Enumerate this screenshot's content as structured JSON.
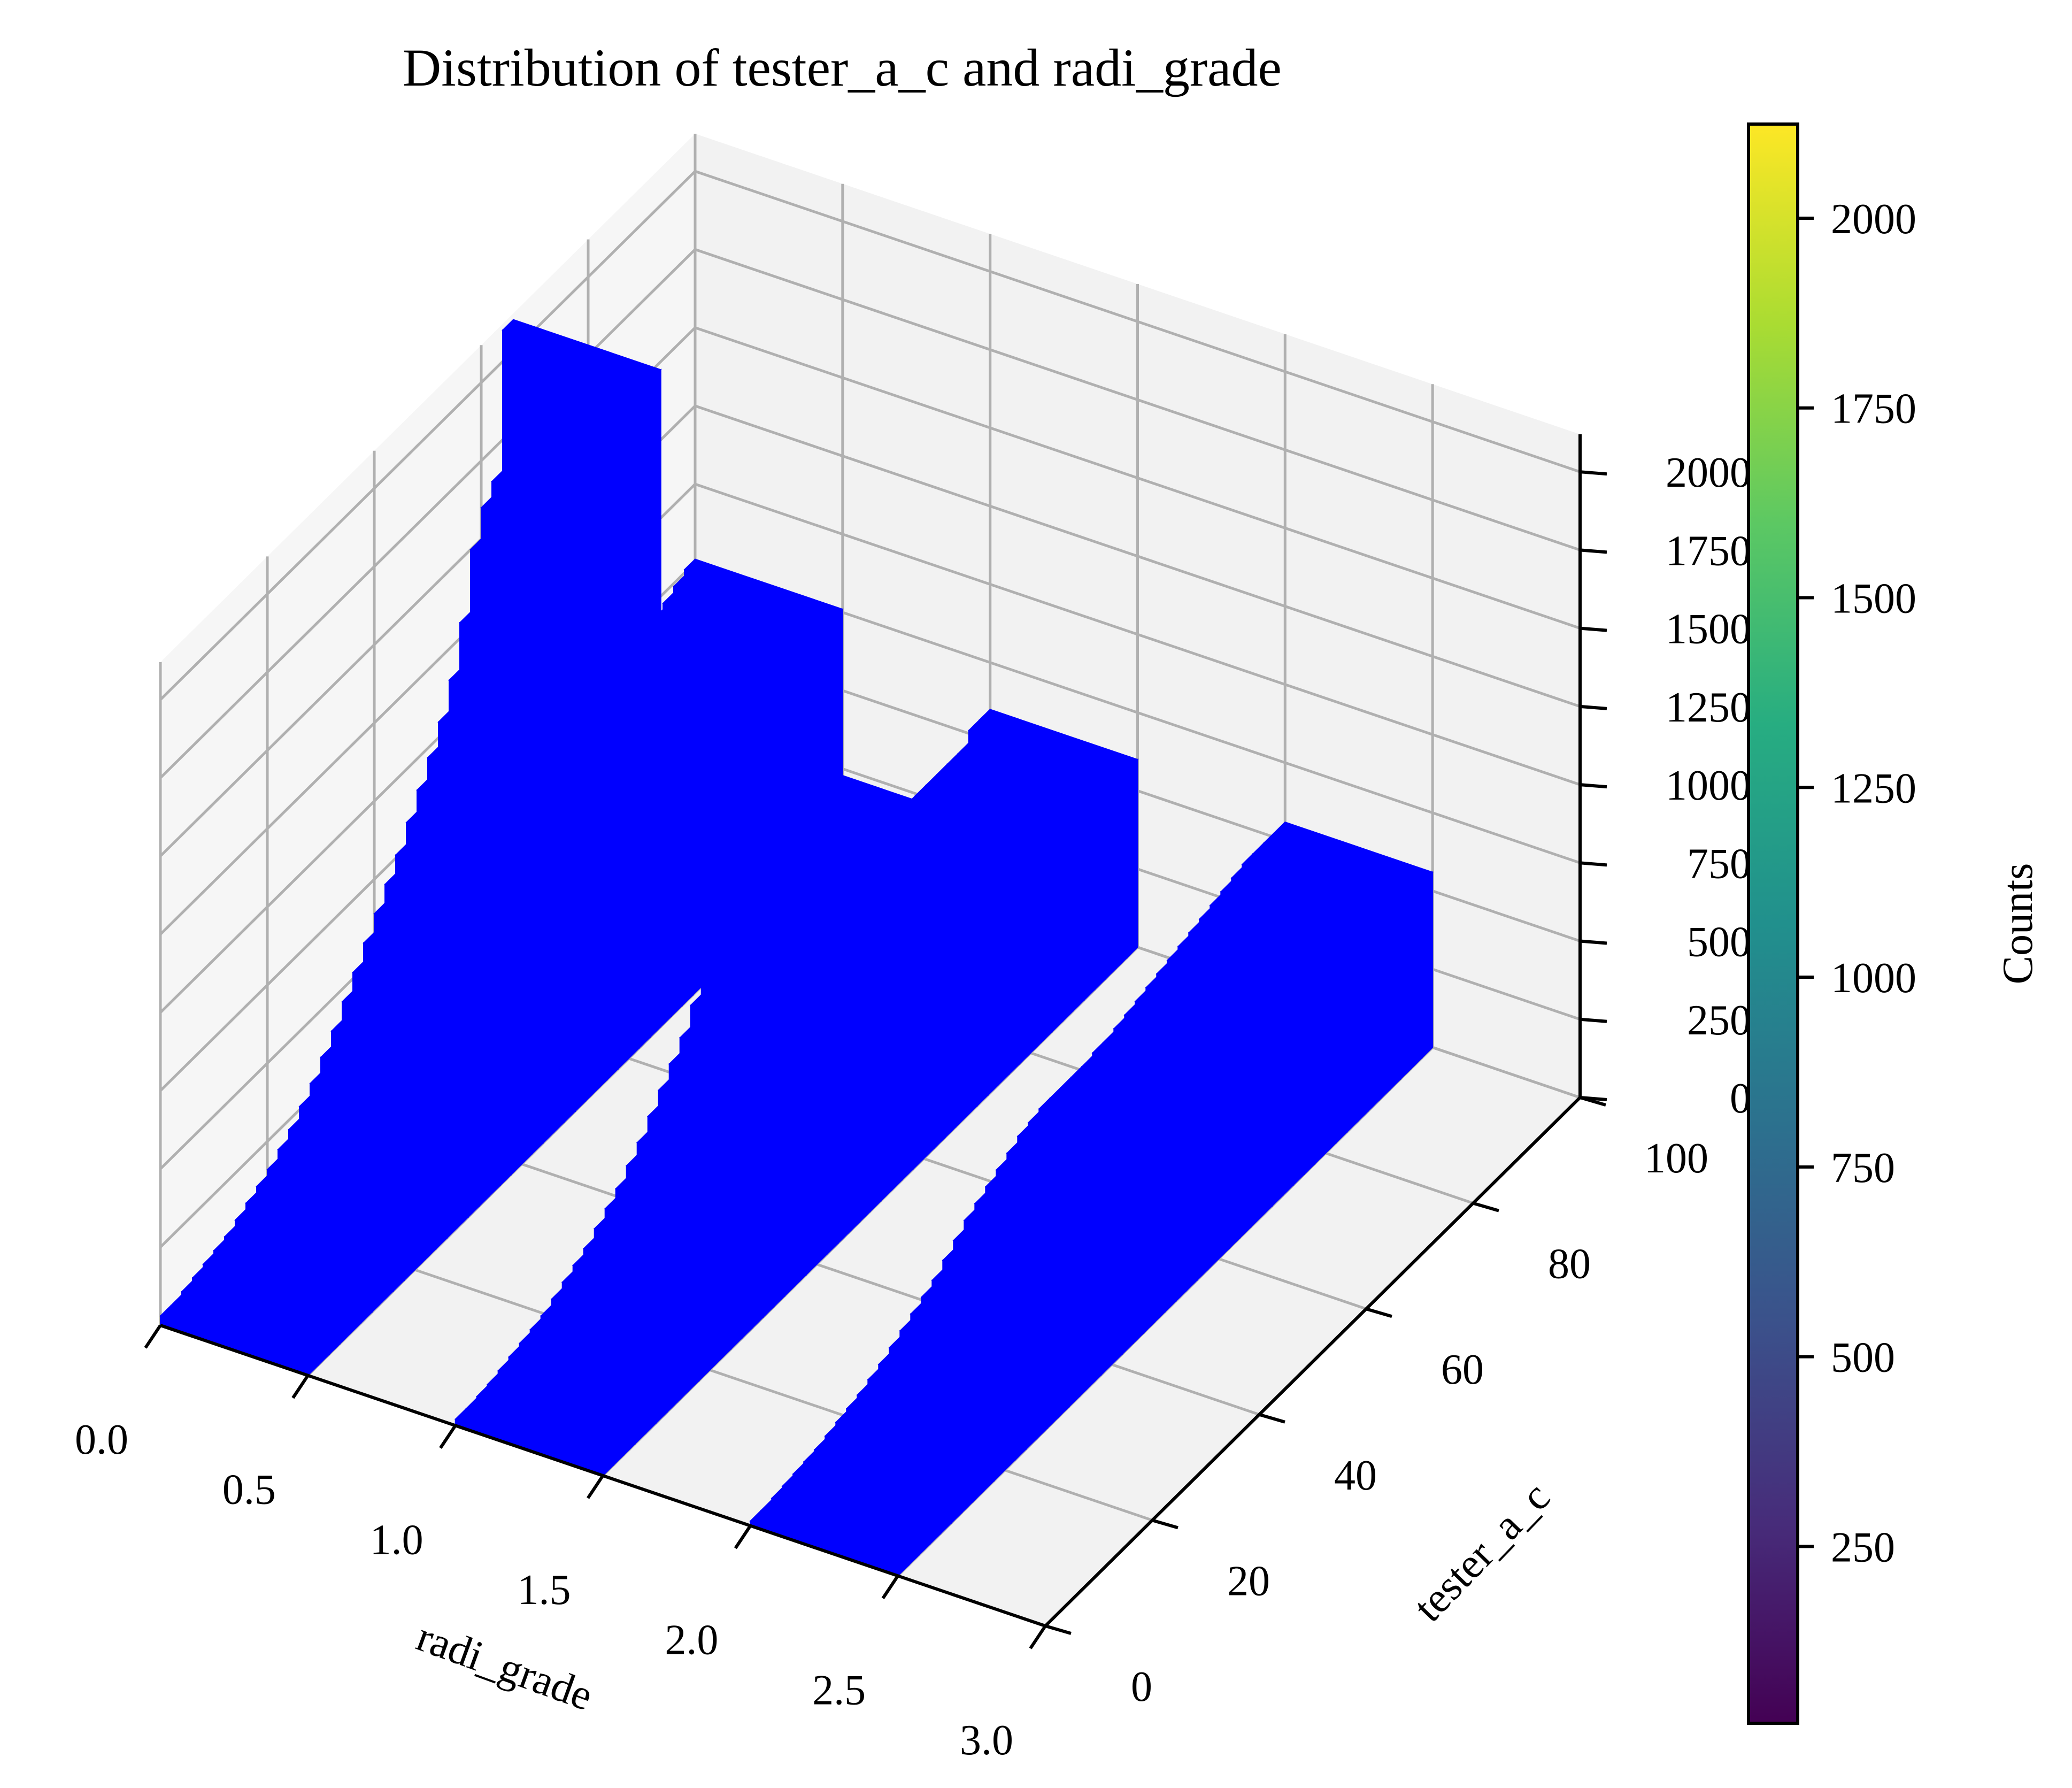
{
  "chart_data": {
    "type": "bar3d",
    "title": "Distribution of tester_a_c and radi_grade",
    "xlabel": "radi_grade",
    "ylabel": "tester_a_c",
    "zlabel": "",
    "xlim": [
      0.0,
      3.0
    ],
    "ylim": [
      0,
      100
    ],
    "zlim": [
      0,
      2000
    ],
    "x_ticks": [
      "0.0",
      "0.5",
      "1.0",
      "1.5",
      "2.0",
      "2.5",
      "3.0"
    ],
    "y_ticks": [
      "0",
      "20",
      "40",
      "60",
      "80",
      "100"
    ],
    "z_ticks": [
      "0",
      "250",
      "500",
      "750",
      "1000",
      "1250",
      "1500",
      "1750",
      "2000"
    ],
    "bar_color": "#0000ff",
    "grid": true,
    "bar_width_x": 0.5,
    "bar_depth_y": 2,
    "groups": [
      {
        "radi_grade": 0,
        "tester_a_c": [
          0,
          2,
          4,
          6,
          8,
          10,
          12,
          14,
          16,
          18,
          20,
          22,
          24,
          26,
          28,
          30,
          32,
          34,
          36,
          38,
          40,
          42,
          44,
          46,
          48,
          50,
          52,
          54,
          56,
          58,
          60,
          62,
          64,
          66,
          68,
          70,
          72,
          74,
          76,
          78,
          80,
          82,
          84,
          86,
          88,
          90,
          92,
          94,
          96,
          98
        ],
        "counts": [
          30,
          30,
          40,
          50,
          60,
          70,
          80,
          100,
          120,
          140,
          160,
          190,
          220,
          260,
          300,
          350,
          400,
          460,
          520,
          580,
          640,
          700,
          760,
          830,
          900,
          970,
          1050,
          1150,
          1300,
          1500,
          1600,
          1650,
          2100,
          550,
          540,
          540,
          540,
          540,
          540,
          540,
          540,
          540,
          540,
          540,
          540,
          540,
          700,
          720,
          740,
          760
        ]
      },
      {
        "radi_grade": 1,
        "tester_a_c": [
          0,
          2,
          4,
          6,
          8,
          10,
          12,
          14,
          16,
          18,
          20,
          22,
          24,
          26,
          28,
          30,
          32,
          34,
          36,
          38,
          40,
          42,
          44,
          46,
          48,
          50,
          52,
          54,
          56,
          58,
          60,
          62,
          64,
          66,
          68,
          70,
          72,
          74,
          76,
          78,
          80,
          82,
          84,
          86,
          88,
          90,
          92,
          94,
          96,
          98
        ],
        "counts": [
          20,
          20,
          25,
          30,
          40,
          50,
          60,
          70,
          80,
          100,
          120,
          140,
          160,
          190,
          220,
          250,
          290,
          330,
          380,
          430,
          480,
          530,
          600,
          650,
          700,
          750,
          780,
          800,
          820,
          850,
          900,
          960,
          1000,
          400,
          400,
          450,
          500,
          540,
          560,
          560,
          560,
          560,
          560,
          560,
          560,
          560,
          560,
          560,
          600,
          600
        ]
      },
      {
        "radi_grade": 2,
        "tester_a_c": [
          0,
          2,
          4,
          6,
          8,
          10,
          12,
          14,
          16,
          18,
          20,
          22,
          24,
          26,
          28,
          30,
          32,
          34,
          36,
          38,
          40,
          42,
          44,
          46,
          48,
          50,
          52,
          54,
          56,
          58,
          60,
          62,
          64,
          66,
          68,
          70,
          72,
          74,
          76,
          78,
          80,
          82,
          84,
          86,
          88,
          90,
          92,
          94,
          96,
          98
        ],
        "counts": [
          15,
          15,
          20,
          25,
          30,
          35,
          40,
          50,
          60,
          70,
          80,
          95,
          110,
          130,
          150,
          170,
          190,
          210,
          240,
          270,
          300,
          320,
          340,
          360,
          380,
          400,
          410,
          420,
          420,
          420,
          420,
          420,
          430,
          430,
          440,
          450,
          460,
          470,
          480,
          490,
          500,
          510,
          520,
          530,
          540,
          550,
          560,
          560,
          560,
          560
        ]
      }
    ],
    "colorbar": {
      "label": "Counts",
      "ticks": [
        "250",
        "500",
        "750",
        "1000",
        "1250",
        "1500",
        "1750",
        "2000"
      ],
      "tick_values": [
        250,
        500,
        750,
        1000,
        1250,
        1500,
        1750,
        2000
      ],
      "range": [
        17,
        2124
      ],
      "colormap": "viridis"
    }
  }
}
